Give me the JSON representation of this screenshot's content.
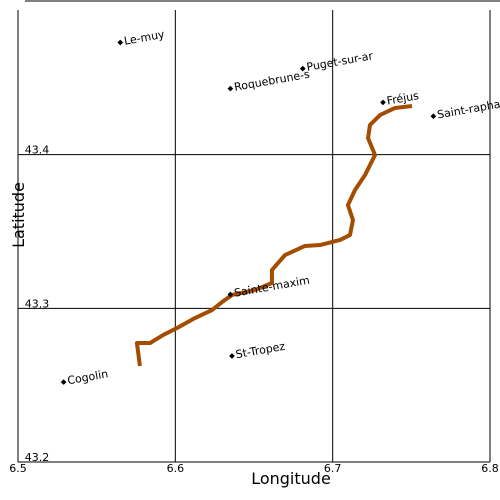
{
  "chart_data": {
    "type": "line",
    "xlabel": "Longitude",
    "ylabel": "Latitude",
    "xlim": [
      6.5,
      6.8
    ],
    "ylim": [
      43.2,
      43.5
    ],
    "xticks": [
      6.5,
      6.6,
      6.7,
      6.8
    ],
    "yticks": [
      43.2,
      43.3,
      43.4
    ],
    "grid": true,
    "series": [
      {
        "color": "#a44c00",
        "x": [
          6.5775,
          6.5756,
          6.5839,
          6.5922,
          6.6011,
          6.6125,
          6.6233,
          6.6297,
          6.636,
          6.6506,
          6.6614,
          6.6614,
          6.6697,
          6.6824,
          6.692,
          6.7047,
          6.711,
          6.7129,
          6.7097,
          6.7142,
          6.7206,
          6.7269,
          6.7225,
          6.7237,
          6.7301,
          6.7396,
          6.7504
        ],
        "values": [
          43.2625,
          43.2774,
          43.2774,
          43.2826,
          43.2872,
          43.2937,
          43.2989,
          43.3041,
          43.3087,
          43.3119,
          43.3165,
          43.3249,
          43.3347,
          43.3406,
          43.3412,
          43.3445,
          43.3477,
          43.3575,
          43.3672,
          43.377,
          43.3868,
          43.3998,
          43.4108,
          43.4193,
          43.4258,
          43.4304,
          43.4317
        ]
      }
    ],
    "places": {
      "labels": [
        "Le-muy",
        "Roquebrune-s",
        "Puget-sur-ar",
        "Fréjus",
        "Saint-rapha",
        "Sainte-maxim",
        "St-Tropez",
        "Cogolin"
      ],
      "x": [
        6.565,
        6.635,
        6.681,
        6.732,
        6.764,
        6.635,
        6.636,
        6.529
      ],
      "y": [
        43.473,
        43.443,
        43.456,
        43.434,
        43.425,
        43.309,
        43.269,
        43.252
      ]
    }
  }
}
